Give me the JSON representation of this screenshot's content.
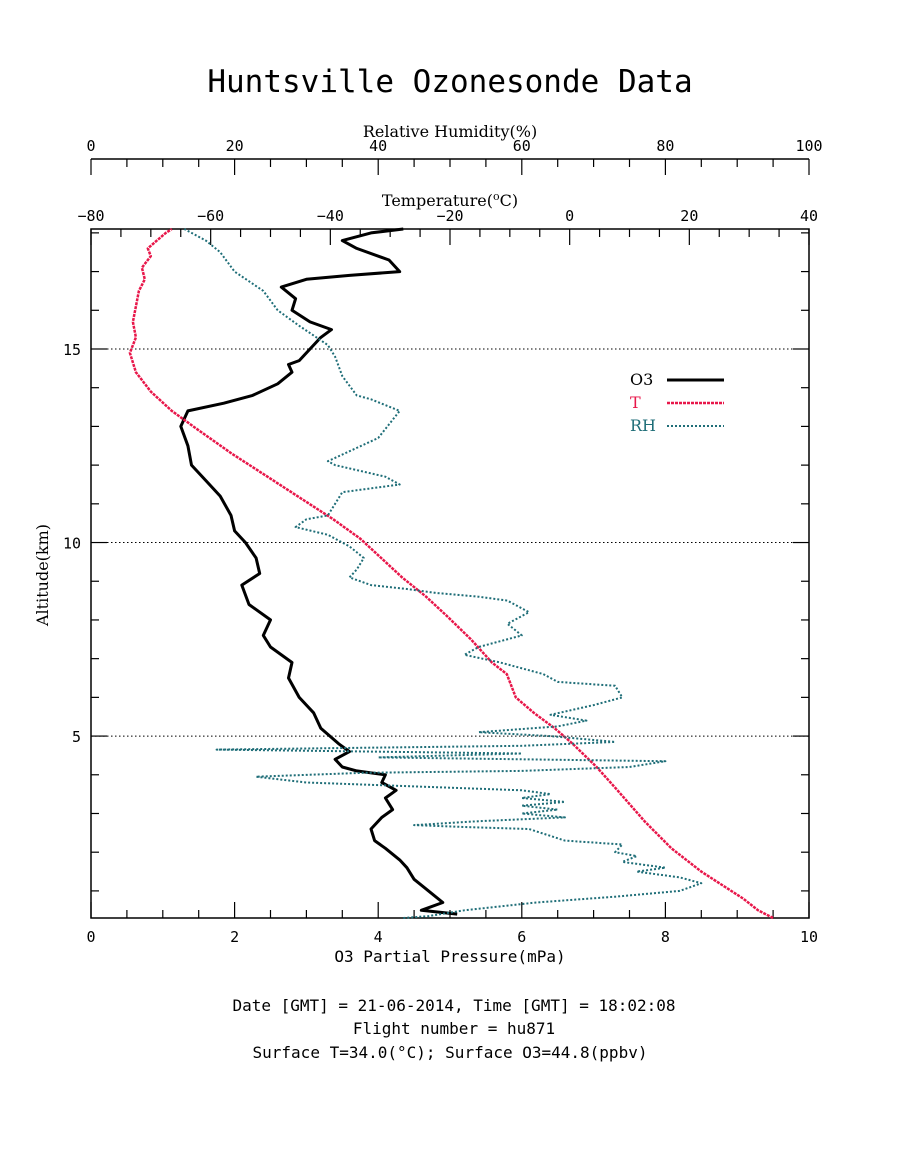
{
  "title": "Huntsville Ozonesonde Data",
  "footer": {
    "line1": "Date [GMT] = 21-06-2014,  Time [GMT] = 18:02:08",
    "line2": "Flight number = hu871",
    "line3": "Surface T=34.0(°C); Surface O3=44.8(ppbv)"
  },
  "colors": {
    "o3": "#000000",
    "temperature": "#e8174a",
    "rh": "#1f6e78",
    "grid": "#000000"
  },
  "chart_data": {
    "type": "line",
    "title": "Huntsville Ozonesonde Data",
    "grid": "dotted horizontal lines at 5, 10 and 15 km",
    "legend_position": "right, upper-middle",
    "axes": {
      "y": {
        "label": "Altitude(km)",
        "range": [
          0.3,
          18.1
        ],
        "ticks": [
          5,
          10,
          15
        ]
      },
      "x_o3": {
        "label": "O3 Partial Pressure(mPa)",
        "position": "bottom",
        "range": [
          0,
          10
        ],
        "ticks": [
          0,
          2,
          4,
          6,
          8,
          10
        ]
      },
      "x_temperature": {
        "label": "Temperature(°C)",
        "label_main": "Temperature(",
        "label_sup": "o",
        "label_unit": "C)",
        "position": "top-inner",
        "range": [
          -80,
          40
        ],
        "ticks": [
          -80,
          -60,
          -40,
          -20,
          0,
          20,
          40
        ]
      },
      "x_rh": {
        "label": "Relative Humidity(%)",
        "position": "top-outer",
        "range": [
          0,
          100
        ],
        "ticks": [
          0,
          20,
          40,
          60,
          80,
          100
        ]
      }
    },
    "series": [
      {
        "name": "O3",
        "axis": "x_o3",
        "style": "solid",
        "points": [
          [
            5.1,
            0.4
          ],
          [
            4.6,
            0.5
          ],
          [
            4.9,
            0.7
          ],
          [
            4.7,
            1.0
          ],
          [
            4.5,
            1.3
          ],
          [
            4.4,
            1.6
          ],
          [
            4.3,
            1.8
          ],
          [
            4.1,
            2.1
          ],
          [
            3.95,
            2.3
          ],
          [
            3.9,
            2.6
          ],
          [
            4.05,
            2.9
          ],
          [
            4.2,
            3.1
          ],
          [
            4.1,
            3.4
          ],
          [
            4.25,
            3.6
          ],
          [
            4.05,
            3.8
          ],
          [
            4.1,
            4.0
          ],
          [
            3.7,
            4.1
          ],
          [
            3.5,
            4.2
          ],
          [
            3.4,
            4.4
          ],
          [
            3.6,
            4.6
          ],
          [
            3.45,
            4.8
          ],
          [
            3.2,
            5.2
          ],
          [
            3.1,
            5.6
          ],
          [
            2.9,
            6.0
          ],
          [
            2.75,
            6.5
          ],
          [
            2.8,
            6.9
          ],
          [
            2.5,
            7.3
          ],
          [
            2.4,
            7.6
          ],
          [
            2.5,
            8.0
          ],
          [
            2.2,
            8.4
          ],
          [
            2.1,
            8.9
          ],
          [
            2.35,
            9.2
          ],
          [
            2.3,
            9.6
          ],
          [
            2.15,
            10.0
          ],
          [
            2.0,
            10.3
          ],
          [
            1.95,
            10.7
          ],
          [
            1.8,
            11.2
          ],
          [
            1.6,
            11.6
          ],
          [
            1.4,
            12.0
          ],
          [
            1.35,
            12.5
          ],
          [
            1.25,
            13.0
          ],
          [
            1.35,
            13.4
          ],
          [
            1.85,
            13.6
          ],
          [
            2.25,
            13.8
          ],
          [
            2.6,
            14.1
          ],
          [
            2.8,
            14.4
          ],
          [
            2.75,
            14.6
          ],
          [
            2.9,
            14.7
          ],
          [
            3.05,
            15.0
          ],
          [
            3.2,
            15.3
          ],
          [
            3.35,
            15.5
          ],
          [
            3.05,
            15.7
          ],
          [
            2.8,
            16.0
          ],
          [
            2.85,
            16.3
          ],
          [
            2.65,
            16.6
          ],
          [
            3.0,
            16.8
          ],
          [
            3.6,
            16.9
          ],
          [
            4.3,
            17.0
          ],
          [
            4.15,
            17.3
          ],
          [
            3.7,
            17.6
          ],
          [
            3.5,
            17.8
          ],
          [
            3.9,
            18.0
          ],
          [
            4.35,
            18.1
          ]
        ]
      },
      {
        "name": "T",
        "axis": "x_temperature",
        "style": "solid-dotted",
        "points": [
          [
            34.0,
            0.3
          ],
          [
            31.5,
            0.5
          ],
          [
            29.0,
            0.8
          ],
          [
            26.0,
            1.1
          ],
          [
            22.0,
            1.5
          ],
          [
            17.0,
            2.1
          ],
          [
            12.5,
            2.8
          ],
          [
            8.0,
            3.6
          ],
          [
            4.5,
            4.2
          ],
          [
            0.5,
            4.8
          ],
          [
            -2.5,
            5.2
          ],
          [
            -6.0,
            5.6
          ],
          [
            -9.0,
            6.0
          ],
          [
            -10.5,
            6.6
          ],
          [
            -13.0,
            6.9
          ],
          [
            -16.5,
            7.5
          ],
          [
            -20.5,
            8.1
          ],
          [
            -24.0,
            8.6
          ],
          [
            -28.0,
            9.1
          ],
          [
            -31.5,
            9.6
          ],
          [
            -35.0,
            10.1
          ],
          [
            -39.5,
            10.6
          ],
          [
            -44.5,
            11.1
          ],
          [
            -50.5,
            11.7
          ],
          [
            -56.5,
            12.3
          ],
          [
            -62.0,
            12.9
          ],
          [
            -66.5,
            13.4
          ],
          [
            -70.0,
            13.9
          ],
          [
            -72.5,
            14.4
          ],
          [
            -73.5,
            14.9
          ],
          [
            -72.5,
            15.3
          ],
          [
            -73.0,
            15.7
          ],
          [
            -72.5,
            16.1
          ],
          [
            -72.0,
            16.5
          ],
          [
            -71.0,
            16.8
          ],
          [
            -71.5,
            17.1
          ],
          [
            -70.0,
            17.4
          ],
          [
            -70.5,
            17.6
          ],
          [
            -69.0,
            17.8
          ],
          [
            -67.5,
            18.0
          ],
          [
            -66.5,
            18.1
          ]
        ]
      },
      {
        "name": "RH",
        "axis": "x_rh",
        "style": "dotted",
        "points": [
          [
            43.5,
            0.3
          ],
          [
            47.0,
            0.35
          ],
          [
            52.0,
            0.5
          ],
          [
            62.0,
            0.7
          ],
          [
            73.0,
            0.85
          ],
          [
            82.0,
            1.0
          ],
          [
            85.0,
            1.2
          ],
          [
            82.0,
            1.35
          ],
          [
            76.0,
            1.5
          ],
          [
            80.0,
            1.6
          ],
          [
            74.0,
            1.75
          ],
          [
            76.0,
            1.9
          ],
          [
            73.0,
            2.0
          ],
          [
            74.0,
            2.2
          ],
          [
            66.0,
            2.3
          ],
          [
            61.0,
            2.6
          ],
          [
            52.0,
            2.65
          ],
          [
            45.0,
            2.7
          ],
          [
            54.0,
            2.8
          ],
          [
            66.0,
            2.9
          ],
          [
            60.0,
            3.0
          ],
          [
            65.0,
            3.1
          ],
          [
            60.0,
            3.2
          ],
          [
            66.0,
            3.3
          ],
          [
            60.0,
            3.4
          ],
          [
            64.0,
            3.5
          ],
          [
            60.0,
            3.6
          ],
          [
            45.0,
            3.7
          ],
          [
            30.0,
            3.8
          ],
          [
            23.0,
            3.95
          ],
          [
            38.0,
            4.05
          ],
          [
            60.0,
            4.1
          ],
          [
            75.0,
            4.2
          ],
          [
            80.0,
            4.35
          ],
          [
            40.0,
            4.45
          ],
          [
            60.0,
            4.55
          ],
          [
            17.5,
            4.65
          ],
          [
            60.0,
            4.75
          ],
          [
            73.0,
            4.85
          ],
          [
            64.0,
            5.0
          ],
          [
            54.0,
            5.1
          ],
          [
            65.0,
            5.25
          ],
          [
            69.0,
            5.4
          ],
          [
            64.0,
            5.55
          ],
          [
            70.0,
            5.8
          ],
          [
            74.0,
            6.0
          ],
          [
            73.0,
            6.3
          ],
          [
            65.0,
            6.4
          ],
          [
            63.0,
            6.6
          ],
          [
            57.0,
            6.9
          ],
          [
            52.0,
            7.1
          ],
          [
            54.0,
            7.3
          ],
          [
            60.0,
            7.6
          ],
          [
            58.0,
            7.9
          ],
          [
            61.0,
            8.2
          ],
          [
            58.0,
            8.5
          ],
          [
            54.0,
            8.6
          ],
          [
            48.0,
            8.7
          ],
          [
            44.0,
            8.8
          ],
          [
            39.0,
            8.9
          ],
          [
            36.0,
            9.1
          ],
          [
            37.0,
            9.3
          ],
          [
            38.0,
            9.6
          ],
          [
            36.0,
            9.9
          ],
          [
            33.0,
            10.2
          ],
          [
            28.5,
            10.4
          ],
          [
            30.0,
            10.6
          ],
          [
            33.0,
            10.7
          ],
          [
            34.0,
            11.0
          ],
          [
            35.0,
            11.3
          ],
          [
            43.0,
            11.5
          ],
          [
            41.0,
            11.7
          ],
          [
            34.0,
            12.0
          ],
          [
            33.0,
            12.1
          ],
          [
            40.0,
            12.7
          ],
          [
            43.0,
            13.4
          ],
          [
            39.0,
            13.7
          ],
          [
            37.0,
            13.8
          ],
          [
            35.0,
            14.3
          ],
          [
            34.0,
            14.8
          ],
          [
            33.0,
            15.1
          ],
          [
            29.0,
            15.6
          ],
          [
            26.0,
            16.0
          ],
          [
            24.0,
            16.5
          ],
          [
            20.0,
            17.0
          ],
          [
            18.0,
            17.5
          ],
          [
            16.0,
            17.8
          ],
          [
            13.0,
            18.1
          ]
        ]
      }
    ]
  }
}
